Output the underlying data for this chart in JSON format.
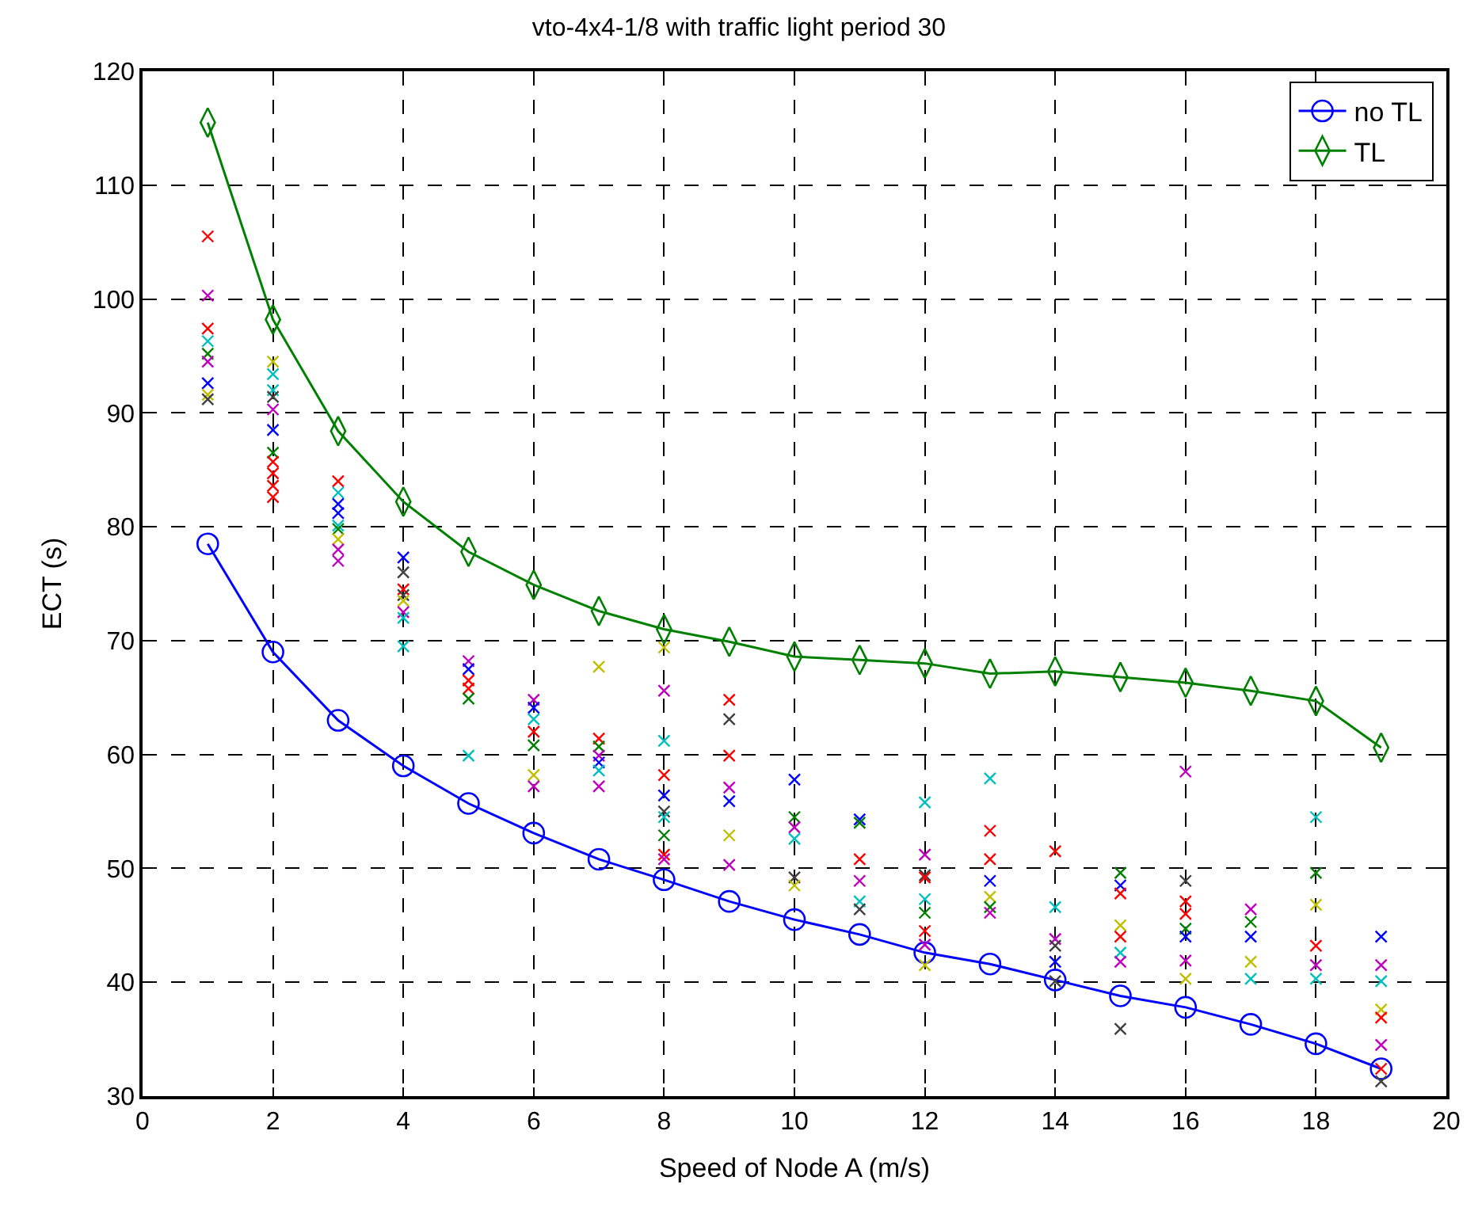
{
  "chart_data": {
    "type": "line",
    "title": "vto-4x4-1/8 with traffic light period 30",
    "xlabel": "Speed of Node A (m/s)",
    "ylabel": "ECT (s)",
    "xlim": [
      0,
      20
    ],
    "xticks": [
      0,
      2,
      4,
      6,
      8,
      10,
      12,
      14,
      16,
      18,
      20
    ],
    "ylim": [
      30,
      120
    ],
    "yticks": [
      30,
      40,
      50,
      60,
      70,
      80,
      90,
      100,
      110,
      120
    ],
    "grid": true,
    "legend": "top right",
    "series": [
      {
        "name": "no TL",
        "color": "#0000ff",
        "marker": "circle",
        "x": [
          1,
          2,
          3,
          4,
          5,
          6,
          7,
          8,
          9,
          10,
          11,
          12,
          13,
          14,
          15,
          16,
          17,
          18,
          19
        ],
        "values": [
          78.5,
          69,
          63,
          59,
          55.7,
          53.1,
          50.8,
          49,
          47.1,
          45.5,
          44.2,
          42.6,
          41.6,
          40.2,
          38.8,
          37.8,
          36.3,
          34.6,
          32.4
        ]
      },
      {
        "name": "TL",
        "color": "#008000",
        "marker": "diamond",
        "x": [
          1,
          2,
          3,
          4,
          5,
          6,
          7,
          8,
          9,
          10,
          11,
          12,
          13,
          14,
          15,
          16,
          17,
          18,
          19
        ],
        "values": [
          115.5,
          98.2,
          88.4,
          82.2,
          77.8,
          74.9,
          72.6,
          71.0,
          69.9,
          68.6,
          68.3,
          68.0,
          67.1,
          67.3,
          66.8,
          66.3,
          65.6,
          64.7,
          60.6
        ]
      },
      {
        "type": "scatter",
        "marker": "cross",
        "x": [
          1,
          1,
          1,
          1,
          1,
          1,
          1,
          1,
          1,
          2,
          2,
          2,
          2,
          2,
          2,
          2,
          2,
          2,
          2,
          2,
          3,
          3,
          3,
          3,
          3,
          3,
          3,
          3,
          3,
          4,
          4,
          4,
          4,
          4,
          4,
          4,
          4,
          5,
          5,
          5,
          5,
          5,
          5,
          6,
          6,
          6,
          6,
          6,
          6,
          6,
          7,
          7,
          7,
          7,
          7,
          7,
          7,
          8,
          8,
          8,
          8,
          8,
          8,
          8,
          8,
          8,
          8,
          9,
          9,
          9,
          9,
          9,
          9,
          9,
          10,
          10,
          10,
          10,
          10,
          10,
          11,
          11,
          11,
          11,
          11,
          11,
          12,
          12,
          12,
          12,
          12,
          12,
          12,
          12,
          12,
          13,
          13,
          13,
          13,
          13,
          13,
          13,
          14,
          14,
          14,
          14,
          14,
          14,
          15,
          15,
          15,
          15,
          15,
          15,
          15,
          15,
          16,
          16,
          16,
          16,
          16,
          16,
          16,
          16,
          17,
          17,
          17,
          17,
          17,
          18,
          18,
          18,
          18,
          18,
          18,
          19,
          19,
          19,
          19,
          19,
          19,
          19,
          19
        ],
        "values": [
          105.5,
          100.3,
          97.4,
          96.3,
          95.2,
          94.5,
          92.6,
          91.6,
          91.2,
          94.5,
          93.4,
          92,
          91.4,
          90.3,
          88.5,
          86.5,
          85.7,
          84.7,
          83.6,
          82.6,
          84,
          83,
          82,
          81.2,
          80.1,
          79.8,
          78.9,
          78,
          77,
          77.3,
          76,
          74.5,
          74,
          73.5,
          72.5,
          72,
          69.5,
          68.2,
          67.5,
          66.5,
          65.8,
          64.9,
          59.9,
          64.8,
          64.1,
          63.1,
          62,
          60.8,
          58.2,
          57.2,
          67.7,
          61.4,
          60.7,
          59.9,
          59.3,
          58.6,
          57.2,
          69.4,
          65.6,
          61.2,
          58.2,
          56.4,
          55,
          54.5,
          52.9,
          51.2,
          50.8,
          64.8,
          63.1,
          59.9,
          57.1,
          55.9,
          52.9,
          50.3,
          57.8,
          54.5,
          53.6,
          52.6,
          49.2,
          48.5,
          54.3,
          54,
          50.8,
          48.9,
          47.1,
          46.4,
          55.8,
          51.2,
          49.4,
          49.2,
          47.3,
          46.1,
          44.5,
          43.3,
          41.5,
          57.9,
          53.3,
          50.8,
          48.9,
          47.5,
          46.6,
          46.1,
          51.5,
          46.6,
          43.8,
          43.2,
          41.8,
          40.1,
          49.6,
          48.5,
          47.8,
          45,
          44,
          42.6,
          41.8,
          35.9,
          58.5,
          48.9,
          47.1,
          46,
          44.7,
          44,
          41.9,
          40.3,
          46.4,
          45.3,
          44,
          41.8,
          40.3,
          54.5,
          49.6,
          46.8,
          43.2,
          41.5,
          40.3,
          44,
          41.5,
          40.1,
          37.6,
          36.9,
          34.5,
          32.4,
          31.3
        ],
        "colors": [
          "#ff0000",
          "#bf00bf",
          "#ff0000",
          "#00bfbf",
          "#008000",
          "#bf00bf",
          "#0000ff",
          "#bfbf00",
          "#404040",
          "#bfbf00",
          "#00bfbf",
          "#00bfbf",
          "#404040",
          "#bf00bf",
          "#0000ff",
          "#008000",
          "#ff0000",
          "#ff0000",
          "#ff0000",
          "#ff0000",
          "#ff0000",
          "#00bfbf",
          "#0000ff",
          "#0000ff",
          "#00bfbf",
          "#008000",
          "#bfbf00",
          "#bf00bf",
          "#bf00bf",
          "#0000ff",
          "#404040",
          "#ff0000",
          "#404040",
          "#bfbf00",
          "#bf00bf",
          "#00bfbf",
          "#00bfbf",
          "#bf00bf",
          "#0000ff",
          "#ff0000",
          "#ff0000",
          "#008000",
          "#00bfbf",
          "#bf00bf",
          "#0000ff",
          "#00bfbf",
          "#ff0000",
          "#008000",
          "#bfbf00",
          "#bf00bf",
          "#bfbf00",
          "#ff0000",
          "#008000",
          "#bf00bf",
          "#0000ff",
          "#00bfbf",
          "#bf00bf",
          "#bfbf00",
          "#bf00bf",
          "#00bfbf",
          "#ff0000",
          "#0000ff",
          "#404040",
          "#00bfbf",
          "#008000",
          "#ff0000",
          "#bf00bf",
          "#ff0000",
          "#404040",
          "#ff0000",
          "#bf00bf",
          "#0000ff",
          "#bfbf00",
          "#bf00bf",
          "#0000ff",
          "#008000",
          "#bf00bf",
          "#00bfbf",
          "#404040",
          "#bfbf00",
          "#0000ff",
          "#008000",
          "#ff0000",
          "#bf00bf",
          "#00bfbf",
          "#404040",
          "#00bfbf",
          "#bf00bf",
          "#404040",
          "#ff0000",
          "#00bfbf",
          "#008000",
          "#ff0000",
          "#bf00bf",
          "#bfbf00",
          "#00bfbf",
          "#ff0000",
          "#ff0000",
          "#0000ff",
          "#bfbf00",
          "#008000",
          "#bf00bf",
          "#ff0000",
          "#00bfbf",
          "#bf00bf",
          "#404040",
          "#0000ff",
          "#404040",
          "#008000",
          "#0000ff",
          "#ff0000",
          "#bfbf00",
          "#ff0000",
          "#00bfbf",
          "#bf00bf",
          "#404040",
          "#bf00bf",
          "#404040",
          "#ff0000",
          "#ff0000",
          "#008000",
          "#0000ff",
          "#bf00bf",
          "#bfbf00",
          "#bf00bf",
          "#008000",
          "#0000ff",
          "#bfbf00",
          "#00bfbf",
          "#00bfbf",
          "#008000",
          "#bfbf00",
          "#ff0000",
          "#bf00bf",
          "#00bfbf",
          "#0000ff",
          "#bf00bf",
          "#00bfbf",
          "#bfbf00",
          "#ff0000",
          "#bf00bf",
          "#ff0000",
          "#404040"
        ]
      }
    ]
  }
}
